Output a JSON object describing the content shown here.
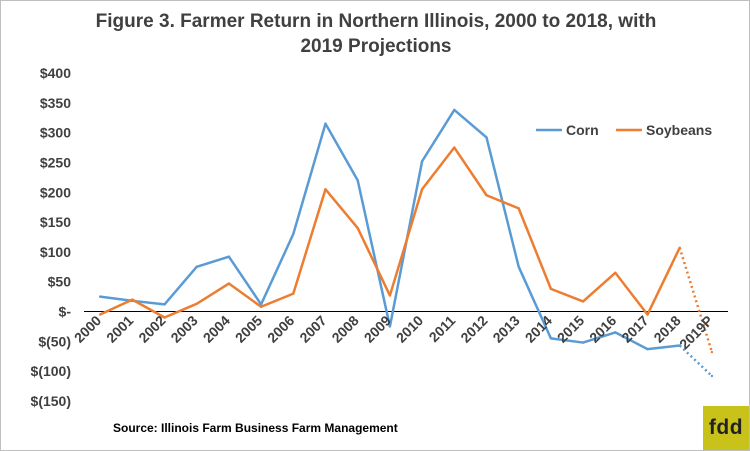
{
  "chart_data": {
    "type": "line",
    "title_line1": "Figure 3.  Farmer Return in Northern Illinois, 2000 to 2018, with",
    "title_line2": "2019 Projections",
    "xlabel": "",
    "ylabel": "",
    "categories": [
      "2000",
      "2001",
      "2002",
      "2003",
      "2004",
      "2005",
      "2006",
      "2007",
      "2008",
      "2009",
      "2010",
      "2011",
      "2012",
      "2013",
      "2014",
      "2015",
      "2016",
      "2017",
      "2018",
      "2019P"
    ],
    "y_ticks": [
      {
        "value": 400,
        "label": "$400"
      },
      {
        "value": 350,
        "label": "$350"
      },
      {
        "value": 300,
        "label": "$300"
      },
      {
        "value": 250,
        "label": "$250"
      },
      {
        "value": 200,
        "label": "$200"
      },
      {
        "value": 150,
        "label": "$150"
      },
      {
        "value": 100,
        "label": "$100"
      },
      {
        "value": 50,
        "label": "$50"
      },
      {
        "value": 0,
        "label": "$-"
      },
      {
        "value": -50,
        "label": "$(50)"
      },
      {
        "value": -100,
        "label": "$(100)"
      },
      {
        "value": -150,
        "label": "$(150)"
      }
    ],
    "ylim": [
      -150,
      400
    ],
    "grid": false,
    "legend_position": "top-right",
    "series": [
      {
        "name": "Corn",
        "color": "#5b9bd5",
        "values": [
          25,
          18,
          12,
          75,
          92,
          12,
          130,
          315,
          220,
          -25,
          252,
          338,
          292,
          75,
          -45,
          -52,
          -35,
          -63,
          -57,
          -108
        ],
        "projection_from_index": 18
      },
      {
        "name": "Soybeans",
        "color": "#ed7d31",
        "values": [
          -5,
          20,
          -10,
          13,
          47,
          8,
          30,
          205,
          140,
          27,
          205,
          275,
          195,
          173,
          38,
          17,
          65,
          -5,
          107,
          -68
        ],
        "projection_from_index": 18
      }
    ]
  },
  "source_text": "Source:  Illinois Farm Business  Farm Management",
  "logo_text": "fdd"
}
